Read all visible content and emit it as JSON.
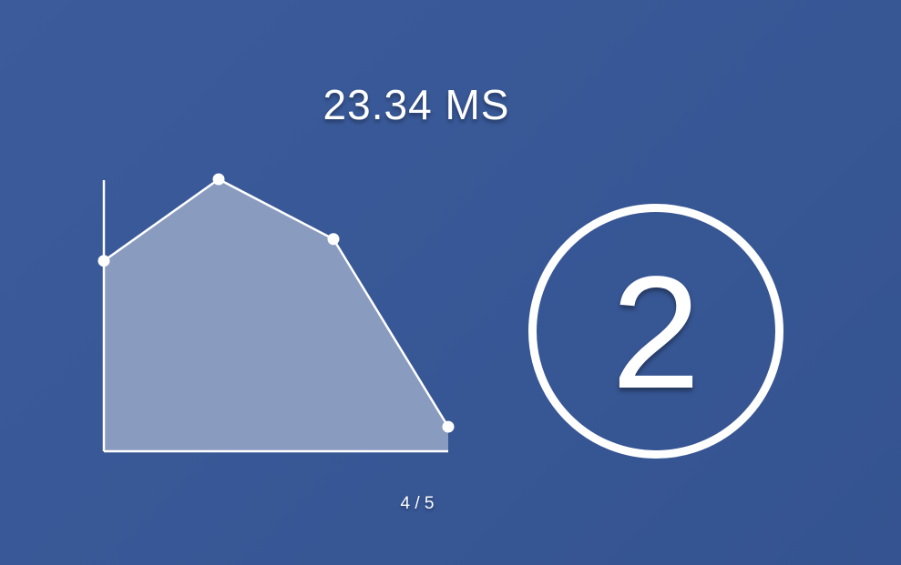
{
  "metric": {
    "value": "23.34 MS"
  },
  "chart_data": {
    "type": "area",
    "x": [
      0,
      1,
      2,
      3
    ],
    "y": [
      70,
      100,
      78,
      9
    ],
    "ylim": [
      0,
      100
    ],
    "grid": false
  },
  "badge": {
    "number": "2"
  },
  "pager": {
    "label": "4 / 5"
  },
  "colors": {
    "background": "#375795",
    "foreground": "#ffffff",
    "area_fill": "#8a9bc0"
  }
}
